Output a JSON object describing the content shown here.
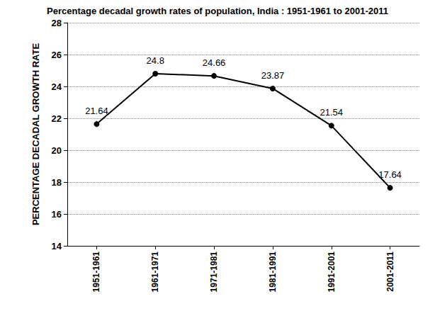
{
  "chart_data": {
    "type": "line",
    "title": "Percentage decadal growth rates of population, India : 1951-1961 to 2001-2011",
    "y_label": "PERCENTAGE DECADAL GROWTH RATE",
    "categories": [
      "1951-1961",
      "1961-1971",
      "1971-1981",
      "1981-1991",
      "1991-2001",
      "2001-2011"
    ],
    "values": [
      21.64,
      24.8,
      24.66,
      23.87,
      21.54,
      17.64
    ],
    "color": "#000000",
    "marker": "circle",
    "line_style": "solid",
    "ylim": [
      14,
      28
    ],
    "yticks": [
      14,
      16,
      18,
      20,
      22,
      24,
      26,
      28
    ],
    "grid": true,
    "data_labels": true
  }
}
